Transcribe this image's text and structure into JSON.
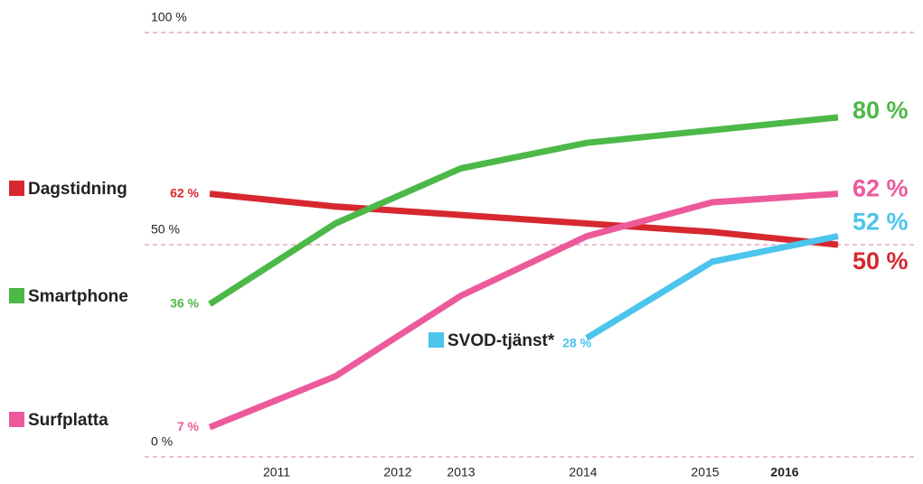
{
  "chart_data": {
    "type": "line",
    "categories": [
      "2011",
      "2012",
      "2013",
      "2014",
      "2015",
      "2016"
    ],
    "ylim": [
      0,
      100
    ],
    "yticks": [
      {
        "value": 0,
        "label": "0 %"
      },
      {
        "value": 50,
        "label": "50 %"
      },
      {
        "value": 100,
        "label": "100 %"
      }
    ],
    "grid": true,
    "series": [
      {
        "name": "Dagstidning",
        "color": "#d7282f",
        "values": [
          62,
          59,
          57,
          55,
          53,
          50
        ],
        "value_labels": [
          "62 %",
          null,
          null,
          null,
          null,
          "50 %"
        ]
      },
      {
        "name": "Smartphone",
        "color": "#4cb848",
        "values": [
          36,
          55,
          68,
          74,
          77,
          80
        ],
        "value_labels": [
          "36 %",
          null,
          null,
          null,
          null,
          "80 %"
        ]
      },
      {
        "name": "Surfplatta",
        "color": "#ec5a9b",
        "values": [
          7,
          19,
          38,
          52,
          60,
          62
        ],
        "value_labels": [
          "7 %",
          null,
          null,
          null,
          null,
          "62 %"
        ]
      },
      {
        "name": "SVOD-tjänst*",
        "color": "#4cc4ec",
        "values": [
          null,
          null,
          null,
          28,
          46,
          52
        ],
        "value_labels": [
          null,
          null,
          null,
          "28 %",
          null,
          "52 %"
        ]
      }
    ]
  }
}
